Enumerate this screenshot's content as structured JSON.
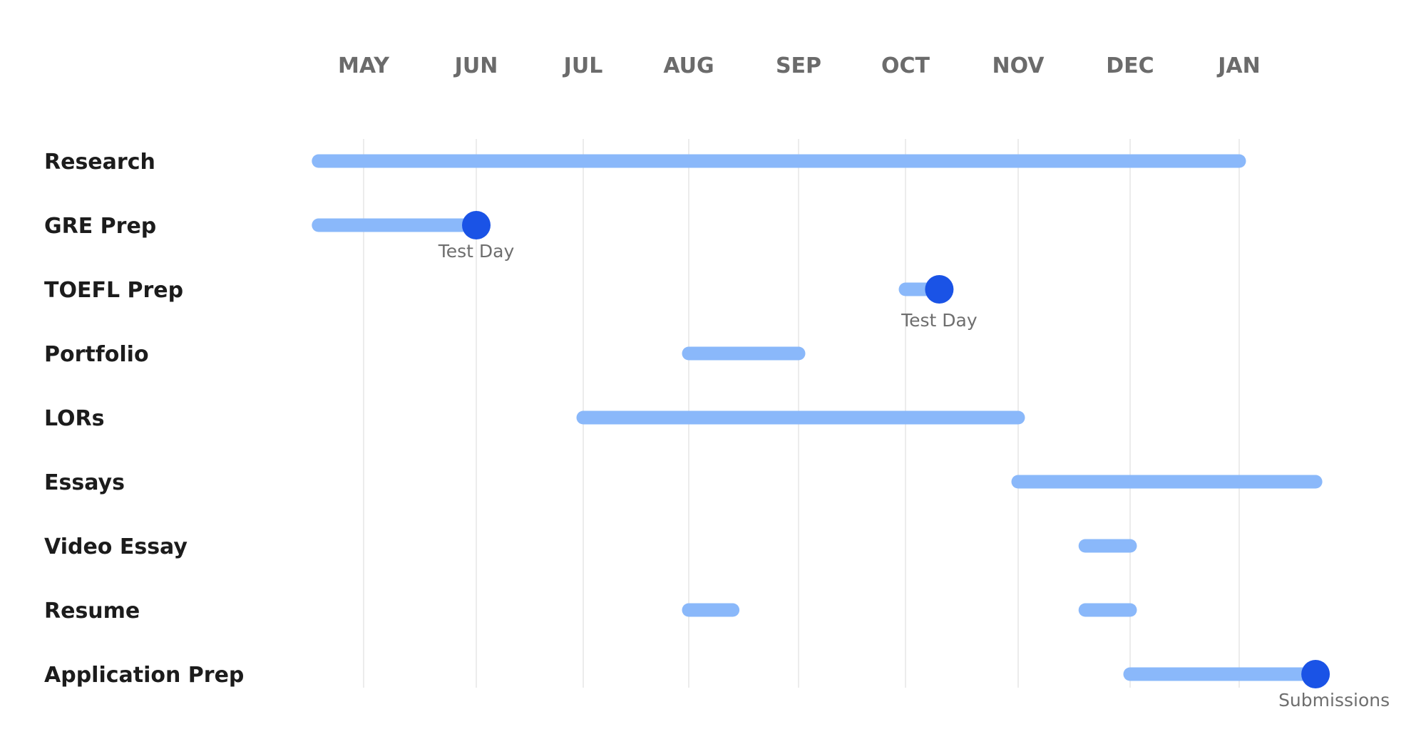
{
  "chart_data": {
    "type": "gantt",
    "months": [
      "MAY",
      "JUN",
      "JUL",
      "AUG",
      "SEP",
      "OCT",
      "NOV",
      "DEC",
      "JAN"
    ],
    "tasks": [
      {
        "name": "Research",
        "bars": [
          {
            "start": -0.4,
            "end": 8.0
          }
        ]
      },
      {
        "name": "GRE Prep",
        "bars": [
          {
            "start": -0.4,
            "end": 1.0
          }
        ],
        "milestone": {
          "at": 1.0,
          "label": "Test Day"
        }
      },
      {
        "name": "TOEFL Prep",
        "bars": [
          {
            "start": 5.0,
            "end": 5.3
          }
        ],
        "milestone": {
          "at": 5.3,
          "label": "Test Day"
        }
      },
      {
        "name": "Portfolio",
        "bars": [
          {
            "start": 3.0,
            "end": 4.0
          }
        ]
      },
      {
        "name": "LORs",
        "bars": [
          {
            "start": 2.0,
            "end": 6.0
          }
        ]
      },
      {
        "name": "Essays",
        "bars": [
          {
            "start": 6.0,
            "end": 8.7
          }
        ]
      },
      {
        "name": "Video Essay",
        "bars": [
          {
            "start": 6.6,
            "end": 7.0
          }
        ]
      },
      {
        "name": "Resume",
        "bars": [
          {
            "start": 3.0,
            "end": 3.4
          },
          {
            "start": 6.6,
            "end": 7.0
          }
        ]
      },
      {
        "name": "Application Prep",
        "bars": [
          {
            "start": 7.0,
            "end": 8.7
          }
        ],
        "milestone": {
          "at": 8.7,
          "label": "Submissions"
        }
      }
    ],
    "colors": {
      "bar": "#8ab8fa",
      "milestone": "#1a53e6",
      "grid": "#e6e6e6",
      "month_label": "#6b6b6b",
      "row_label": "#1c1c1c",
      "annotation": "#6e6e6e"
    },
    "grid": true
  }
}
